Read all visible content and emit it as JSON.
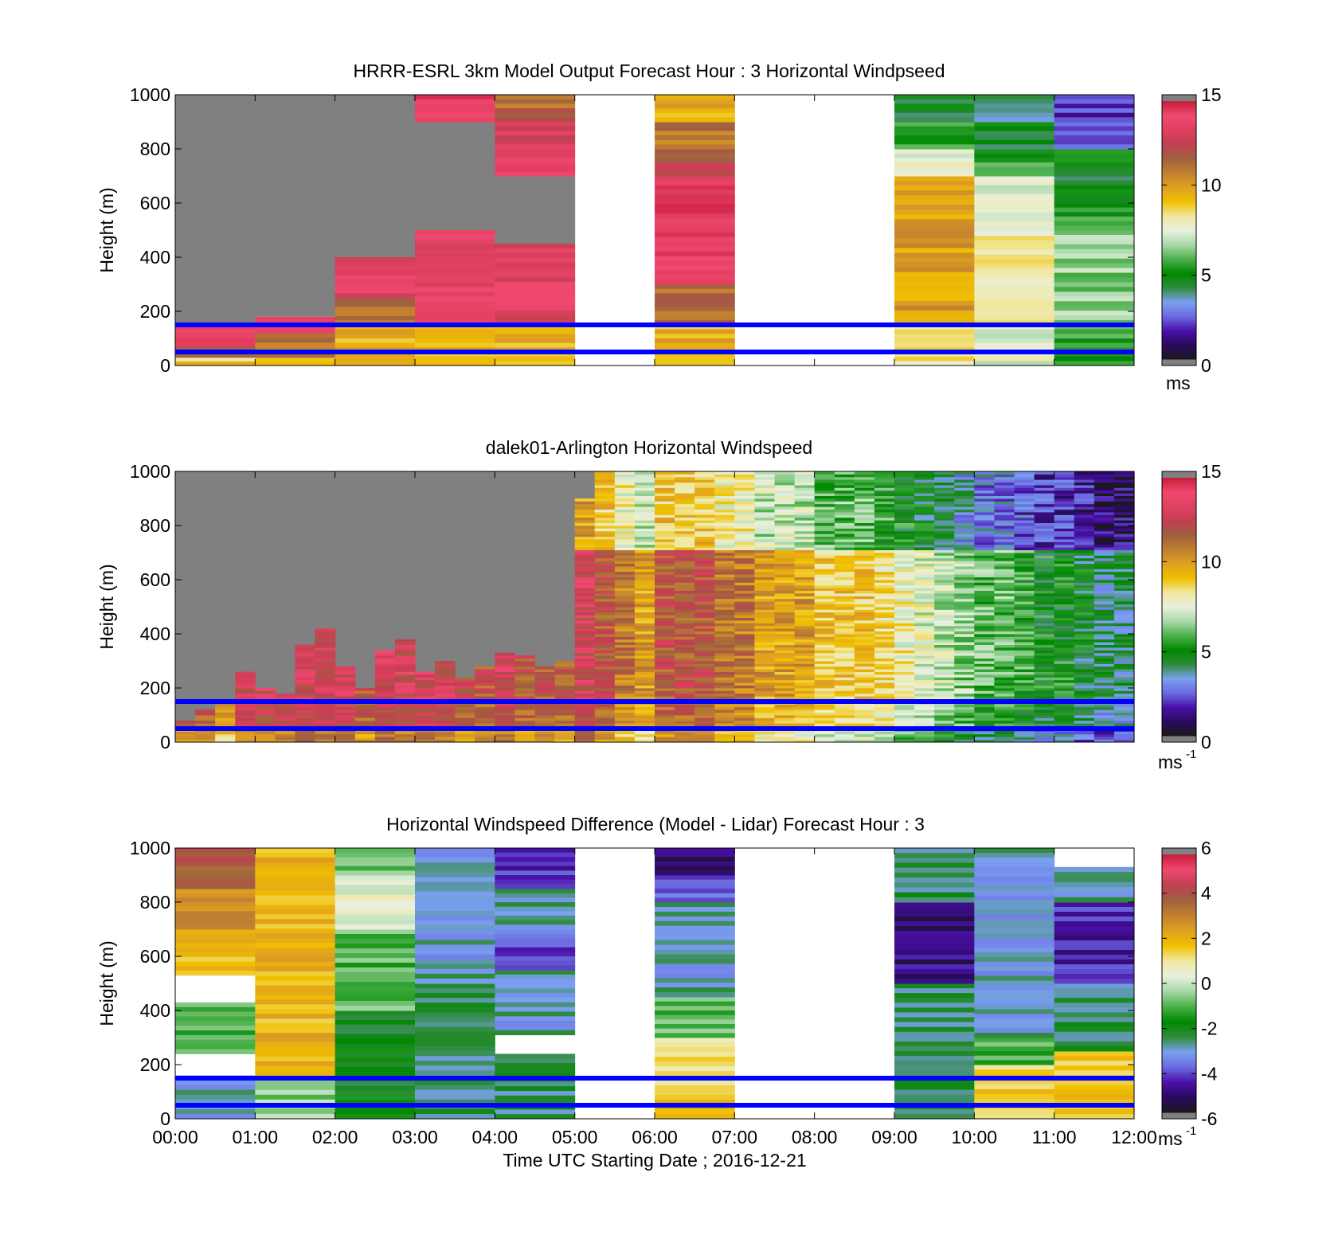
{
  "colors": {
    "gray": "#808080",
    "frame": "#000000",
    "overlay_line": "#0000ff",
    "windspeed_colormap": [
      "#1a1a1a",
      "#2a0a5e",
      "#4a10a8",
      "#6a6ae0",
      "#7aa0f0",
      "#2e8b3a",
      "#008800",
      "#4cb04c",
      "#a8d8a8",
      "#e8f0e0",
      "#f0e8a0",
      "#f0c000",
      "#e0a020",
      "#c08030",
      "#a06040",
      "#c04050",
      "#e04060",
      "#f04870",
      "#c81e3c",
      "#808080"
    ],
    "difference_colormap": [
      "#808080",
      "#1a1a1a",
      "#2a0a5e",
      "#4a10a8",
      "#6a6ae0",
      "#7aa0f0",
      "#2e8b3a",
      "#008800",
      "#4cb04c",
      "#a8d8a8",
      "#e8f0e0",
      "#f0e8a0",
      "#f0c000",
      "#e0a020",
      "#c08030",
      "#a06040",
      "#c04050",
      "#f04870",
      "#c81e3c",
      "#808080"
    ]
  },
  "x_axis": {
    "label": "Time UTC  Starting Date ; 2016-12-21",
    "ticks": [
      "00:00",
      "01:00",
      "02:00",
      "03:00",
      "04:00",
      "05:00",
      "06:00",
      "07:00",
      "08:00",
      "09:00",
      "10:00",
      "11:00",
      "12:00"
    ]
  },
  "chart_data": [
    {
      "type": "heatmap",
      "title": "HRRR-ESRL 3km Model Output   Forecast Hour : 3 Horizontal Windpseed",
      "ylabel": "Height (m)",
      "xlim": [
        "00:00",
        "12:00"
      ],
      "ylim": [
        0,
        1000
      ],
      "yticks": [
        "0",
        "200",
        "400",
        "600",
        "800",
        "1000"
      ],
      "colorbar": {
        "min": 0,
        "max": 15,
        "ticks": [
          "0",
          "5",
          "10",
          "15"
        ],
        "unit": "ms",
        "unit_sup": ""
      },
      "horizontal_lines_m": [
        150,
        50
      ],
      "description": "Hourly model columns of horizontal wind speed vs height; gray = above model data, white = missing hours (05-06, 07-09)",
      "columns": [
        {
          "hour": "00:00",
          "segments": [
            {
              "from": 0,
              "to": 30,
              "v": 9
            },
            {
              "from": 30,
              "to": 70,
              "v": 12
            },
            {
              "from": 70,
              "to": 150,
              "v": 14
            },
            {
              "from": 150,
              "to": 1000,
              "v": null,
              "gray": true
            }
          ]
        },
        {
          "hour": "01:00",
          "segments": [
            {
              "from": 0,
              "to": 30,
              "v": 9
            },
            {
              "from": 30,
              "to": 120,
              "v": 11
            },
            {
              "from": 120,
              "to": 180,
              "v": 14
            },
            {
              "from": 180,
              "to": 1000,
              "v": null,
              "gray": true
            }
          ]
        },
        {
          "hour": "02:00",
          "segments": [
            {
              "from": 0,
              "to": 150,
              "v": 9.5
            },
            {
              "from": 150,
              "to": 250,
              "v": 11
            },
            {
              "from": 250,
              "to": 400,
              "v": 13.5
            },
            {
              "from": 400,
              "to": 1000,
              "v": null,
              "gray": true
            }
          ]
        },
        {
          "hour": "03:00",
          "segments": [
            {
              "from": 0,
              "to": 150,
              "v": 9.5
            },
            {
              "from": 150,
              "to": 500,
              "v": 13.5
            },
            {
              "from": 500,
              "to": 900,
              "v": null,
              "gray": true
            },
            {
              "from": 900,
              "to": 1000,
              "v": 14
            }
          ]
        },
        {
          "hour": "04:00",
          "segments": [
            {
              "from": 0,
              "to": 150,
              "v": 9.5
            },
            {
              "from": 150,
              "to": 450,
              "v": 13.5
            },
            {
              "from": 450,
              "to": 700,
              "v": null,
              "gray": true
            },
            {
              "from": 700,
              "to": 800,
              "v": 14
            },
            {
              "from": 800,
              "to": 900,
              "v": 13
            },
            {
              "from": 900,
              "to": 1000,
              "v": 11.5
            }
          ]
        },
        {
          "hour": "05:00",
          "segments": []
        },
        {
          "hour": "06:00",
          "segments": [
            {
              "from": 0,
              "to": 150,
              "v": 9.5
            },
            {
              "from": 150,
              "to": 300,
              "v": 11.5
            },
            {
              "from": 300,
              "to": 700,
              "v": 14
            },
            {
              "from": 700,
              "to": 800,
              "v": 12
            },
            {
              "from": 800,
              "to": 900,
              "v": 11
            },
            {
              "from": 900,
              "to": 1000,
              "v": 9.5
            }
          ]
        },
        {
          "hour": "07:00",
          "segments": []
        },
        {
          "hour": "08:00",
          "segments": []
        },
        {
          "hour": "09:00",
          "segments": [
            {
              "from": 0,
              "to": 150,
              "v": 8.5
            },
            {
              "from": 150,
              "to": 700,
              "v": 10
            },
            {
              "from": 700,
              "to": 800,
              "v": 7.5
            },
            {
              "from": 800,
              "to": 900,
              "v": 5.5
            },
            {
              "from": 900,
              "to": 1000,
              "v": 4.5
            }
          ]
        },
        {
          "hour": "10:00",
          "segments": [
            {
              "from": 0,
              "to": 150,
              "v": 7.5
            },
            {
              "from": 150,
              "to": 600,
              "v": 8
            },
            {
              "from": 600,
              "to": 700,
              "v": 7
            },
            {
              "from": 700,
              "to": 800,
              "v": 5.5
            },
            {
              "from": 800,
              "to": 900,
              "v": 4.5
            },
            {
              "from": 900,
              "to": 1000,
              "v": 3.5
            }
          ]
        },
        {
          "hour": "11:00",
          "segments": [
            {
              "from": 0,
              "to": 150,
              "v": 5.5
            },
            {
              "from": 150,
              "to": 500,
              "v": 6.5
            },
            {
              "from": 500,
              "to": 600,
              "v": 5.5
            },
            {
              "from": 600,
              "to": 700,
              "v": 4.5
            },
            {
              "from": 700,
              "to": 800,
              "v": 5
            },
            {
              "from": 800,
              "to": 900,
              "v": 2.5
            },
            {
              "from": 900,
              "to": 1000,
              "v": 2
            }
          ]
        }
      ]
    },
    {
      "type": "heatmap",
      "title": "dalek01-Arlington  Horizontal Windspeed",
      "ylabel": "Height (m)",
      "xlim": [
        "00:00",
        "12:00"
      ],
      "ylim": [
        0,
        1000
      ],
      "yticks": [
        "0",
        "200",
        "400",
        "600",
        "800",
        "1000"
      ],
      "colorbar": {
        "min": 0,
        "max": 15,
        "ticks": [
          "0",
          "5",
          "10",
          "15"
        ],
        "unit": "ms",
        "unit_sup": "-1"
      },
      "horizontal_lines_m": [
        150,
        50
      ],
      "description": "Lidar-observed horizontal wind speed vs height in ~15-minute columns; gray = no data",
      "approx_top_of_data_m": [
        80,
        120,
        140,
        260,
        200,
        180,
        360,
        420,
        280,
        200,
        340,
        380,
        260,
        300,
        240,
        280,
        330,
        320,
        280,
        300,
        900,
        1000,
        1000,
        1000,
        1000,
        1000,
        1000,
        1000,
        1000,
        1000,
        1000,
        1000,
        1000,
        1000,
        1000,
        1000,
        1000,
        1000,
        1000,
        1000,
        1000,
        1000,
        1000,
        1000,
        1000,
        1000,
        1000,
        1000
      ],
      "approx_column_speed_ms": [
        12,
        12,
        11,
        13,
        13,
        13,
        13,
        13,
        13,
        12,
        13,
        13,
        13,
        13,
        12,
        12,
        13,
        12,
        12,
        12,
        13,
        12,
        11,
        10,
        12,
        12,
        12,
        11,
        11,
        10,
        10,
        10,
        9,
        9,
        9,
        8.5,
        8,
        7.5,
        7,
        6.5,
        6,
        6,
        5.5,
        5,
        5,
        4.5,
        4,
        4
      ]
    },
    {
      "type": "heatmap",
      "title": "Horizontal Windspeed Difference (Model - Lidar) Forecast Hour : 3",
      "ylabel": "Height (m)",
      "xlim": [
        "00:00",
        "12:00"
      ],
      "ylim": [
        0,
        1000
      ],
      "yticks": [
        "0",
        "200",
        "400",
        "600",
        "800",
        "1000"
      ],
      "colorbar": {
        "min": -6,
        "max": 6,
        "ticks": [
          "-6",
          "-4",
          "-2",
          "0",
          "2",
          "4",
          "6"
        ],
        "unit": "ms",
        "unit_sup": "-1"
      },
      "horizontal_lines_m": [
        150,
        50
      ],
      "description": "Hourly model minus lidar wind speed difference vs height; white = missing",
      "columns": [
        {
          "hour": "00:00",
          "segments": [
            {
              "from": 0,
              "to": 160,
              "v": -3
            },
            {
              "from": 160,
              "to": 240,
              "v": null
            },
            {
              "from": 240,
              "to": 430,
              "v": -1
            },
            {
              "from": 430,
              "to": 530,
              "v": null
            },
            {
              "from": 530,
              "to": 700,
              "v": 2
            },
            {
              "from": 700,
              "to": 850,
              "v": 3
            },
            {
              "from": 850,
              "to": 1000,
              "v": 4
            }
          ]
        },
        {
          "hour": "01:00",
          "segments": [
            {
              "from": 0,
              "to": 160,
              "v": -0.5
            },
            {
              "from": 160,
              "to": 1000,
              "v": 2
            }
          ]
        },
        {
          "hour": "02:00",
          "segments": [
            {
              "from": 0,
              "to": 400,
              "v": -2
            },
            {
              "from": 400,
              "to": 700,
              "v": -1
            },
            {
              "from": 700,
              "to": 900,
              "v": 0.3
            },
            {
              "from": 900,
              "to": 1000,
              "v": -1
            }
          ]
        },
        {
          "hour": "03:00",
          "segments": [
            {
              "from": 0,
              "to": 500,
              "v": -2.5
            },
            {
              "from": 500,
              "to": 1000,
              "v": -3
            }
          ]
        },
        {
          "hour": "04:00",
          "segments": [
            {
              "from": 0,
              "to": 240,
              "v": -2.5
            },
            {
              "from": 240,
              "to": 310,
              "v": null
            },
            {
              "from": 310,
              "to": 550,
              "v": -3
            },
            {
              "from": 550,
              "to": 700,
              "v": -4
            },
            {
              "from": 700,
              "to": 850,
              "v": -3
            },
            {
              "from": 850,
              "to": 1000,
              "v": -4.5
            }
          ]
        },
        {
          "hour": "05:00",
          "segments": []
        },
        {
          "hour": "06:00",
          "segments": [
            {
              "from": 0,
              "to": 70,
              "v": 2
            },
            {
              "from": 70,
              "to": 300,
              "v": 1
            },
            {
              "from": 300,
              "to": 450,
              "v": -1
            },
            {
              "from": 450,
              "to": 800,
              "v": -3
            },
            {
              "from": 800,
              "to": 900,
              "v": -4
            },
            {
              "from": 900,
              "to": 1000,
              "v": -5
            }
          ]
        },
        {
          "hour": "07:00",
          "segments": []
        },
        {
          "hour": "08:00",
          "segments": []
        },
        {
          "hour": "09:00",
          "segments": [
            {
              "from": 0,
              "to": 500,
              "v": -2.5
            },
            {
              "from": 500,
              "to": 800,
              "v": -5
            },
            {
              "from": 800,
              "to": 1000,
              "v": -2.5
            }
          ]
        },
        {
          "hour": "10:00",
          "segments": [
            {
              "from": 0,
              "to": 200,
              "v": 1.5
            },
            {
              "from": 200,
              "to": 300,
              "v": -1
            },
            {
              "from": 300,
              "to": 1000,
              "v": -3
            }
          ]
        },
        {
          "hour": "11:00",
          "segments": [
            {
              "from": 0,
              "to": 250,
              "v": 1.5
            },
            {
              "from": 250,
              "to": 500,
              "v": -2.5
            },
            {
              "from": 500,
              "to": 800,
              "v": -4.5
            },
            {
              "from": 800,
              "to": 930,
              "v": -3
            },
            {
              "from": 930,
              "to": 1000,
              "v": null
            }
          ]
        }
      ]
    }
  ]
}
